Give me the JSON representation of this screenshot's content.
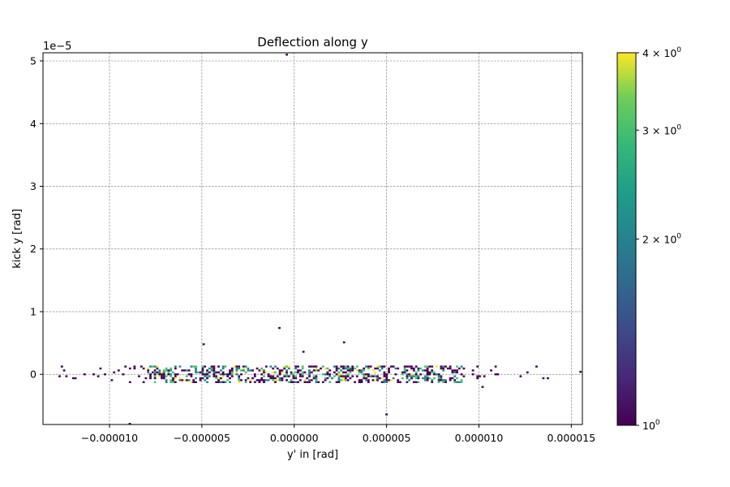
{
  "chart_data": {
    "type": "heatmap",
    "title": "Deflection along y",
    "xlabel": "y' in [rad]",
    "ylabel": "kick y [rad]",
    "y_offset_label": "1e−5",
    "xlim": [
      -1.36e-05,
      1.56e-05
    ],
    "ylim": [
      -8e-06,
      5.13e-05
    ],
    "x_ticks": [
      -1e-05,
      -5e-06,
      0.0,
      5e-06,
      1e-05,
      1.5e-05
    ],
    "x_tick_labels": [
      "−0.000010",
      "−0.000005",
      "0.000000",
      "0.000005",
      "0.000010",
      "0.000015"
    ],
    "y_ticks": [
      0,
      1e-05,
      2e-05,
      3e-05,
      4e-05,
      5e-05
    ],
    "y_tick_labels": [
      "0",
      "1",
      "2",
      "3",
      "4",
      "5"
    ],
    "grid": true,
    "colormap": "viridis",
    "colorbar": {
      "scale": "log",
      "range": [
        1,
        4
      ],
      "ticks": [
        1,
        2,
        3,
        4
      ],
      "tick_labels": [
        {
          "base": "10",
          "exp": "0",
          "prefix": ""
        },
        {
          "base": "10",
          "exp": "0",
          "prefix": "2 × "
        },
        {
          "base": "10",
          "exp": "0",
          "prefix": "3 × "
        },
        {
          "base": "10",
          "exp": "0",
          "prefix": "4 × "
        }
      ]
    },
    "isolated_points": [
      {
        "x": -8.9e-06,
        "y": -7.9e-06,
        "count": 1
      },
      {
        "x": -4.9e-06,
        "y": 4.8e-06,
        "count": 1
      },
      {
        "x": -8e-07,
        "y": 7.4e-06,
        "count": 1
      },
      {
        "x": 5e-07,
        "y": 3.6e-06,
        "count": 1
      },
      {
        "x": 2.7e-06,
        "y": 5.1e-06,
        "count": 1
      },
      {
        "x": 5e-06,
        "y": -6.4e-06,
        "count": 1
      },
      {
        "x": 1.02e-05,
        "y": -2e-06,
        "count": 1
      },
      {
        "x": -4e-07,
        "y": 5.1e-05,
        "count": 1
      },
      {
        "x": 1.55e-05,
        "y": 4e-07,
        "count": 1
      }
    ],
    "band": {
      "x_range": [
        -1.35e-05,
        1.4e-05
      ],
      "y_range": [
        -1.2e-06,
        1.4e-06
      ],
      "core_x_range": [
        -8e-06,
        9e-06
      ],
      "description_counts": [
        1,
        4
      ]
    }
  }
}
